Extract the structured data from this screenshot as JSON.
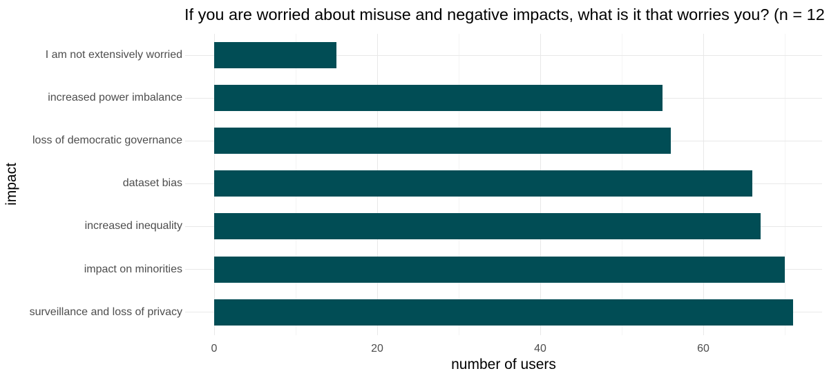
{
  "chart_data": {
    "type": "bar",
    "orientation": "horizontal",
    "title": "If you are worried about misuse and negative impacts, what is it that worries you? (n = 12",
    "xlabel": "number of users",
    "ylabel": "impact",
    "categories": [
      "I am not extensively worried",
      "increased power imbalance",
      "loss of democratic governance",
      "dataset bias",
      "increased inequality",
      "impact on minorities",
      "surveillance and loss of privacy"
    ],
    "values": [
      15,
      55,
      56,
      66,
      67,
      70,
      71
    ],
    "x_ticks_major": [
      0,
      20,
      40,
      60
    ],
    "x_ticks_minor": [
      10,
      30,
      50,
      70
    ],
    "xlim": [
      0,
      74.6
    ],
    "grid": true,
    "legend": "none",
    "colors": {
      "bar": "#014d55",
      "grid_major": "#e8e8e8",
      "grid_minor": "#f4f4f4",
      "axis_text": "#4d4d4d",
      "title_text": "#000000",
      "background": "#ffffff"
    }
  }
}
